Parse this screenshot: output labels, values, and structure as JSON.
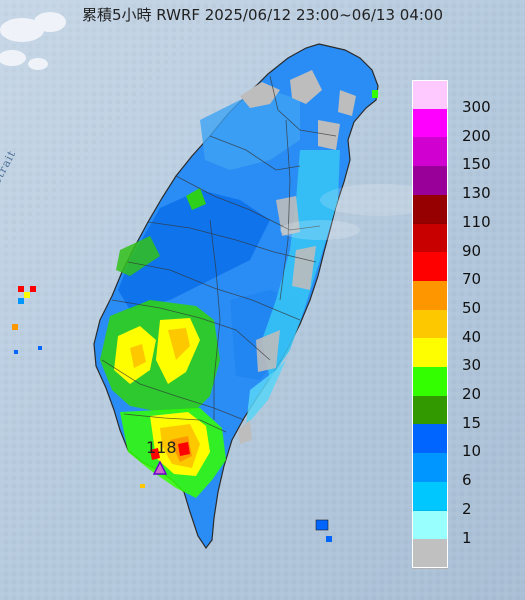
{
  "title": "累積5小時 RWRF 2025/06/12 23:00~06/13 04:00",
  "sea_label": "Formosa Strait",
  "max_value_label": "118",
  "colors": {
    "sea": "#b9cde1",
    "land_gray": "#bdbdbd"
  },
  "legend": [
    {
      "label": "300",
      "color": "#fec9fe"
    },
    {
      "label": "200",
      "color": "#fe00fe"
    },
    {
      "label": "150",
      "color": "#d000d0"
    },
    {
      "label": "130",
      "color": "#990099"
    },
    {
      "label": "110",
      "color": "#960000"
    },
    {
      "label": "90",
      "color": "#c80000"
    },
    {
      "label": "70",
      "color": "#fe0000"
    },
    {
      "label": "50",
      "color": "#fe9600"
    },
    {
      "label": "40",
      "color": "#fec800"
    },
    {
      "label": "30",
      "color": "#fefe00"
    },
    {
      "label": "20",
      "color": "#33ff00"
    },
    {
      "label": "15",
      "color": "#339900"
    },
    {
      "label": "10",
      "color": "#0064fe"
    },
    {
      "label": "6",
      "color": "#0096ff"
    },
    {
      "label": "2",
      "color": "#00c8fe"
    },
    {
      "label": "1",
      "color": "#99fefe"
    },
    {
      "label": "",
      "color": "#c0c0c0"
    }
  ]
}
